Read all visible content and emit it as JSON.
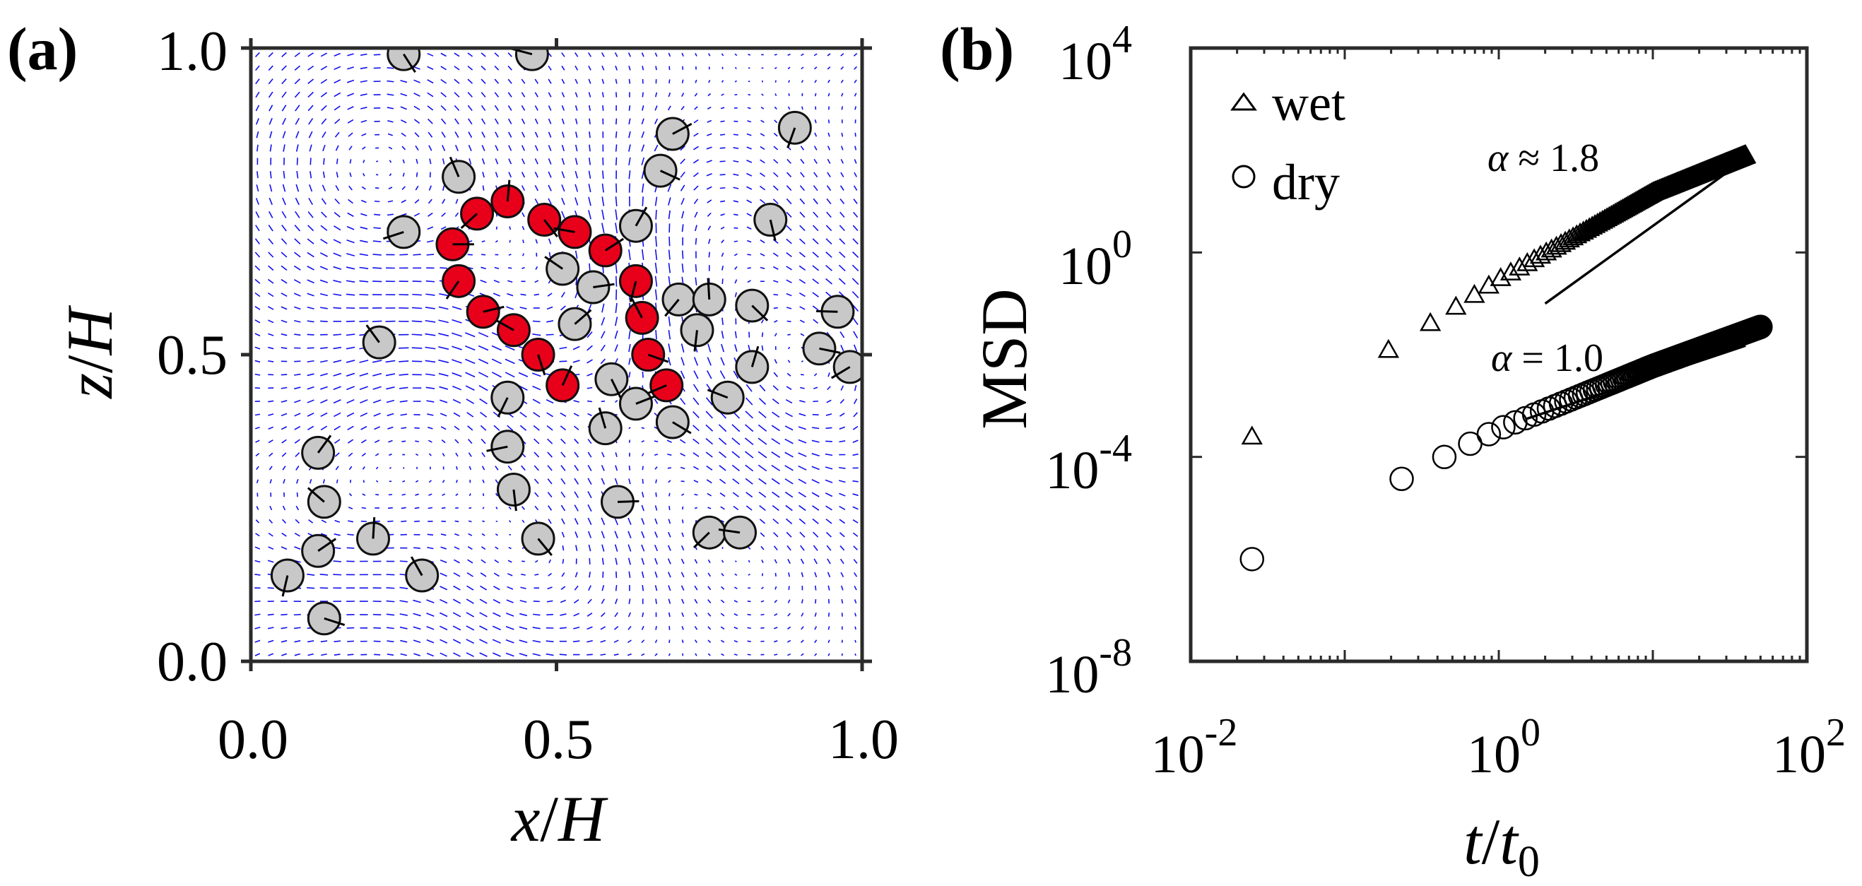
{
  "chart_data": [
    {
      "type": "scatter",
      "panel_label": "(a)",
      "title": "",
      "xlabel": {
        "main": "x",
        "sep": "/",
        "sub": "H"
      },
      "ylabel": {
        "main": "z",
        "sep": "/",
        "sub": "H"
      },
      "xlim": [
        0,
        1
      ],
      "ylim": [
        0,
        1
      ],
      "x_ticks": [
        0,
        0.5,
        1
      ],
      "y_ticks": [
        0,
        0.5,
        1
      ],
      "x_tick_labels": [
        "0.0",
        "0.5",
        "1.0"
      ],
      "y_tick_labels": [
        "0.0",
        "0.5",
        "1.0"
      ],
      "vector_field_color": "#1010ee",
      "particle_radius": 0.026,
      "series": [
        {
          "name": "red particles",
          "color": "#e8001a",
          "points": [
            [
              0.33,
              0.68
            ],
            [
              0.37,
              0.73
            ],
            [
              0.42,
              0.75
            ],
            [
              0.48,
              0.72
            ],
            [
              0.53,
              0.7
            ],
            [
              0.58,
              0.67
            ],
            [
              0.63,
              0.62
            ],
            [
              0.64,
              0.56
            ],
            [
              0.65,
              0.5
            ],
            [
              0.68,
              0.45
            ],
            [
              0.51,
              0.45
            ],
            [
              0.47,
              0.5
            ],
            [
              0.43,
              0.54
            ],
            [
              0.38,
              0.57
            ],
            [
              0.34,
              0.62
            ]
          ]
        },
        {
          "name": "gray particles",
          "color": "#c8c8c8",
          "points": [
            [
              0.25,
              0.99
            ],
            [
              0.46,
              0.99
            ],
            [
              0.69,
              0.86
            ],
            [
              0.89,
              0.87
            ],
            [
              0.34,
              0.79
            ],
            [
              0.67,
              0.8
            ],
            [
              0.25,
              0.7
            ],
            [
              0.63,
              0.71
            ],
            [
              0.85,
              0.72
            ],
            [
              0.51,
              0.64
            ],
            [
              0.56,
              0.61
            ],
            [
              0.7,
              0.59
            ],
            [
              0.75,
              0.59
            ],
            [
              0.82,
              0.58
            ],
            [
              0.96,
              0.57
            ],
            [
              0.53,
              0.55
            ],
            [
              0.73,
              0.54
            ],
            [
              0.21,
              0.52
            ],
            [
              0.93,
              0.51
            ],
            [
              0.98,
              0.48
            ],
            [
              0.82,
              0.48
            ],
            [
              0.59,
              0.46
            ],
            [
              0.78,
              0.43
            ],
            [
              0.63,
              0.42
            ],
            [
              0.42,
              0.43
            ],
            [
              0.58,
              0.38
            ],
            [
              0.69,
              0.39
            ],
            [
              0.42,
              0.35
            ],
            [
              0.11,
              0.34
            ],
            [
              0.43,
              0.28
            ],
            [
              0.12,
              0.26
            ],
            [
              0.6,
              0.26
            ],
            [
              0.75,
              0.21
            ],
            [
              0.2,
              0.2
            ],
            [
              0.47,
              0.2
            ],
            [
              0.8,
              0.21
            ],
            [
              0.11,
              0.18
            ],
            [
              0.06,
              0.14
            ],
            [
              0.28,
              0.14
            ],
            [
              0.12,
              0.07
            ]
          ]
        }
      ]
    },
    {
      "type": "scatter",
      "panel_label": "(b)",
      "title": "",
      "xlabel": {
        "main": "t",
        "sep": "/",
        "sub": "t",
        "subscript": "0"
      },
      "ylabel": "MSD",
      "xscale": "log",
      "yscale": "log",
      "xlim": [
        0.01,
        100
      ],
      "ylim": [
        1e-08,
        10000
      ],
      "x_tick_base": [
        "10",
        "10",
        "10"
      ],
      "x_tick_exp": [
        "-2",
        "0",
        "2"
      ],
      "y_tick_base": [
        "10",
        "10",
        "10",
        "10"
      ],
      "y_tick_exp": [
        "-8",
        "-4",
        "0",
        "4"
      ],
      "legend": {
        "position": "top-left",
        "entries": [
          "wet",
          "dry"
        ]
      },
      "series": [
        {
          "name": "wet",
          "marker": "triangle",
          "x_range": [
            0.025,
            40
          ],
          "n_points": 240,
          "control_points": [
            [
              0.025,
              0.00025
            ],
            [
              0.1,
              0.0035
            ],
            [
              1.0,
              0.3
            ],
            [
              10,
              15
            ],
            [
              40,
              80
            ]
          ]
        },
        {
          "name": "dry",
          "marker": "circle",
          "x_range": [
            0.025,
            50
          ],
          "n_points": 240,
          "control_points": [
            [
              0.025,
              1e-06
            ],
            [
              0.1,
              1e-05
            ],
            [
              1.0,
              0.00035
            ],
            [
              10,
              0.006
            ],
            [
              50,
              0.035
            ]
          ]
        }
      ],
      "annotations": [
        {
          "alpha": "α",
          "op": "≈",
          "value": "1.8",
          "x": [
            2,
            30
          ],
          "y": [
            0.1,
            36
          ]
        },
        {
          "alpha": "α",
          "op": "=",
          "value": "1.0",
          "x": [
            1.5,
            40
          ],
          "y": [
            0.00055,
            0.015
          ]
        }
      ]
    }
  ]
}
